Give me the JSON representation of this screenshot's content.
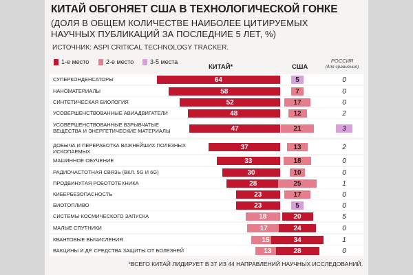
{
  "colors": {
    "first": "#c0172e",
    "second": "#e67d8c",
    "third": "#d8a0da"
  },
  "chart_data": {
    "type": "table",
    "title": "КИТАЙ ОБГОНЯЕТ США В ТЕХНОЛОГИЧЕСКОЙ ГОНКЕ",
    "subtitle": "(ДОЛЯ В ОБЩЕМ КОЛИЧЕСТВЕ НАИБОЛЕЕ ЦИТИРУЕМЫХ НАУЧНЫХ ПУБЛИКАЦИЙ ЗА ПОСЛЕДНИЕ 5 ЛЕТ, %)",
    "source": "ИСТОЧНИК: ASPI CRITICAL TECHNOLOGY TRACKER.",
    "legend": [
      "1-е место",
      "2-е место",
      "3-5 места"
    ],
    "columns": {
      "china": "КИТАЙ*",
      "usa": "США",
      "russia": "РОССИЯ",
      "russia_note": "(для сравнения)"
    },
    "rows": [
      {
        "label": "СУПЕРКОНДЕНСАТОРЫ",
        "china": 64,
        "china_rank": "first",
        "usa": 5,
        "usa_rank": "third",
        "russia": 0,
        "russia_rank": "none"
      },
      {
        "label": "НАНОМАТЕРИАЛЫ",
        "china": 58,
        "china_rank": "first",
        "usa": 7,
        "usa_rank": "second",
        "russia": 0,
        "russia_rank": "none"
      },
      {
        "label": "СИНТЕТИЧЕСКАЯ БИОЛОГИЯ",
        "china": 52,
        "china_rank": "first",
        "usa": 17,
        "usa_rank": "second",
        "russia": 0,
        "russia_rank": "none"
      },
      {
        "label": "УСОВЕРШЕНСТВОВАННЫЕ АВИАДВИГАТЕЛИ",
        "china": 48,
        "china_rank": "first",
        "usa": 12,
        "usa_rank": "second",
        "russia": 2,
        "russia_rank": "none"
      },
      {
        "label": "УСОВЕРШЕНСТВОВАННЫЕ ВЗРЫВЧАТЫЕ ВЕЩЕСТВА И ЭНЕРГЕТИЧЕСКИЕ МАТЕРИАЛЫ",
        "china": 47,
        "china_rank": "first",
        "usa": 21,
        "usa_rank": "second",
        "russia": 3,
        "russia_rank": "third"
      },
      {
        "label": "ДОБЫЧА И ПЕРЕРАБОТКА ВАЖНЕЙШИХ ПОЛЕЗНЫХ ИСКОПАЕМЫХ",
        "china": 37,
        "china_rank": "first",
        "usa": 13,
        "usa_rank": "second",
        "russia": 2,
        "russia_rank": "none"
      },
      {
        "label": "МАШИННОЕ ОБУЧЕНИЕ",
        "china": 33,
        "china_rank": "first",
        "usa": 18,
        "usa_rank": "second",
        "russia": 0,
        "russia_rank": "none"
      },
      {
        "label": "РАДИОЧАСТОТНАЯ СВЯЗЬ (ВКЛ. 5G И 6G)",
        "china": 30,
        "china_rank": "first",
        "usa": 10,
        "usa_rank": "second",
        "russia": 0,
        "russia_rank": "none"
      },
      {
        "label": "ПРОДВИНУТАЯ РОБОТОТЕХНИКА",
        "china": 28,
        "china_rank": "first",
        "usa": 25,
        "usa_rank": "second",
        "russia": 1,
        "russia_rank": "none"
      },
      {
        "label": "КИБЕРБЕЗОПАСНОСТЬ",
        "china": 23,
        "china_rank": "first",
        "usa": 17,
        "usa_rank": "second",
        "russia": 0,
        "russia_rank": "none"
      },
      {
        "label": "БИОТОПЛИВО",
        "china": 23,
        "china_rank": "first",
        "usa": 5,
        "usa_rank": "third",
        "russia": 0,
        "russia_rank": "none"
      },
      {
        "label": "СИСТЕМЫ КОСМИЧЕСКОГО ЗАПУСКА",
        "china": 18,
        "china_rank": "second",
        "usa": 20,
        "usa_rank": "first",
        "russia": 5,
        "russia_rank": "none"
      },
      {
        "label": "МАЛЫЕ СПУТНИКИ",
        "china": 17,
        "china_rank": "second",
        "usa": 24,
        "usa_rank": "first",
        "russia": 0,
        "russia_rank": "none"
      },
      {
        "label": "КВАНТОВЫЕ ВЫЧИСЛЕНИЯ",
        "china": 15,
        "china_rank": "second",
        "usa": 34,
        "usa_rank": "first",
        "russia": 1,
        "russia_rank": "none"
      },
      {
        "label": "ВАКЦИНЫ И ДР. СРЕДСТВА ЗАЩИТЫ ОТ БОЛЕЗНЕЙ",
        "china": 13,
        "china_rank": "second",
        "usa": 28,
        "usa_rank": "first",
        "russia": 0,
        "russia_rank": "none"
      }
    ],
    "footnote": "*ВСЕГО КИТАЙ ЛИДИРУЕТ В 37 ИЗ 44 НАПРАВЛЕНИЙ НАУЧНЫХ ИССЛЕДОВАНИЙ."
  }
}
